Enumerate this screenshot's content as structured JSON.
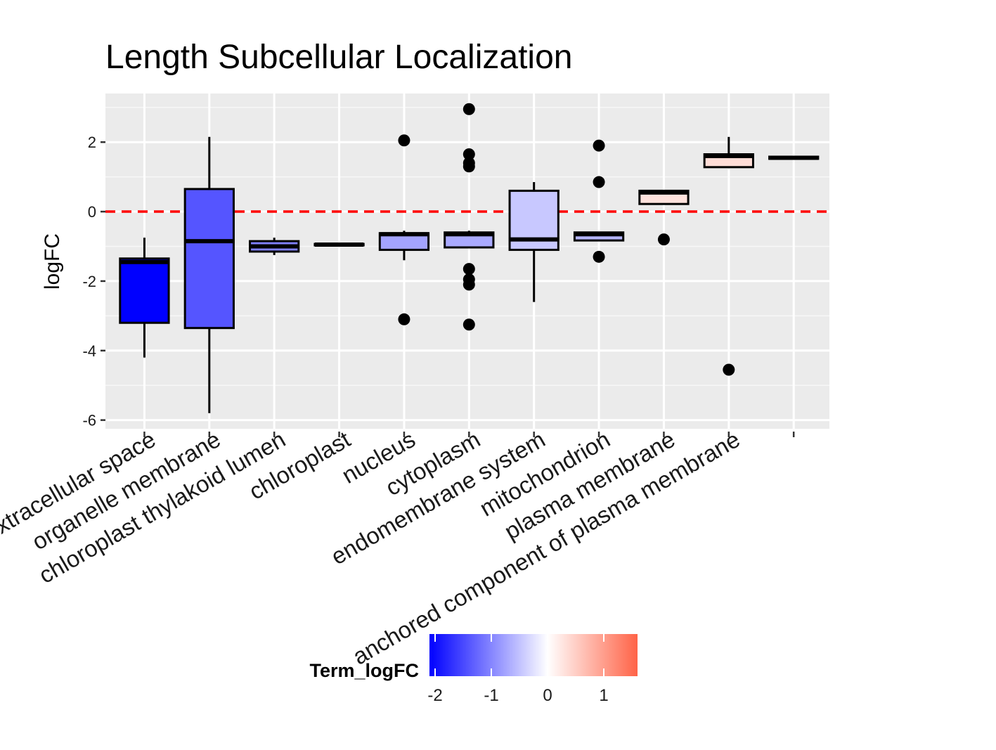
{
  "chart_data": {
    "type": "boxplot",
    "title": "Length Subcellular Localization",
    "xlabel": "",
    "ylabel": "logFC",
    "ylim": [
      -6.25,
      3.4
    ],
    "yticks": [
      -6,
      -4,
      -2,
      0,
      2
    ],
    "grid": true,
    "reference_line": {
      "y": 0,
      "color": "#ff0000",
      "style": "dashed"
    },
    "categories": [
      "extracellular space",
      "organelle membrane",
      "chloroplast thylakoid lumen",
      "chloroplast",
      "nucleus",
      "cytoplasm",
      "endomembrane system",
      "mitochondrion",
      "plasma membrane",
      "anchored component of plasma membrane"
    ],
    "boxes": [
      {
        "category": "extracellular space",
        "whisker_low": -4.2,
        "q1": -3.2,
        "median": -1.45,
        "q3": -1.35,
        "whisker_high": -0.75,
        "outliers": [],
        "term_logFC": -2.1
      },
      {
        "category": "organelle membrane",
        "whisker_low": -5.8,
        "q1": -3.35,
        "median": -0.85,
        "q3": 0.65,
        "whisker_high": 2.15,
        "outliers": [],
        "term_logFC": -1.4
      },
      {
        "category": "chloroplast thylakoid lumen",
        "whisker_low": -1.25,
        "q1": -1.15,
        "median": -1.0,
        "q3": -0.85,
        "whisker_high": -0.75,
        "outliers": [],
        "term_logFC": -1.05
      },
      {
        "category": "chloroplast",
        "whisker_low": -0.98,
        "q1": -0.97,
        "median": -0.95,
        "q3": -0.93,
        "whisker_high": -0.92,
        "outliers": [],
        "term_logFC": -0.95
      },
      {
        "category": "nucleus",
        "whisker_low": -1.4,
        "q1": -1.1,
        "median": -0.65,
        "q3": -0.62,
        "whisker_high": -0.55,
        "outliers": [
          2.05,
          -3.1
        ],
        "term_logFC": -0.75
      },
      {
        "category": "cytoplasm",
        "whisker_low": -1.05,
        "q1": -1.03,
        "median": -0.65,
        "q3": -0.6,
        "whisker_high": -0.55,
        "outliers": [
          2.95,
          1.65,
          1.4,
          1.3,
          -1.65,
          -1.95,
          -2.1,
          -3.25
        ],
        "term_logFC": -0.7
      },
      {
        "category": "endomembrane system",
        "whisker_low": -2.6,
        "q1": -1.1,
        "median": -0.8,
        "q3": 0.6,
        "whisker_high": 0.85,
        "outliers": [],
        "term_logFC": -0.45
      },
      {
        "category": "mitochondrion",
        "whisker_low": -0.85,
        "q1": -0.83,
        "median": -0.65,
        "q3": -0.6,
        "whisker_high": -0.58,
        "outliers": [
          1.9,
          0.85,
          -1.3
        ],
        "term_logFC": -0.6
      },
      {
        "category": "plasma membrane",
        "whisker_low": 0.2,
        "q1": 0.22,
        "median": 0.55,
        "q3": 0.6,
        "whisker_high": 0.62,
        "outliers": [
          -0.8
        ],
        "term_logFC": 0.3
      },
      {
        "category": "anchored component of plasma membrane",
        "whisker_low": 1.25,
        "q1": 1.28,
        "median": 1.6,
        "q3": 1.65,
        "whisker_high": 2.15,
        "outliers": [
          -4.55
        ],
        "term_logFC": 0.35
      }
    ],
    "extra_box": {
      "whisker_low": 1.52,
      "q1": 1.52,
      "median": 1.55,
      "q3": 1.58,
      "whisker_high": 1.58,
      "outliers": [],
      "term_logFC": 0.3
    },
    "legend": {
      "title": "Term_logFC",
      "placement": "bottom",
      "type": "gradient",
      "colors": {
        "low": "#0000ff",
        "mid": "#ffffff",
        "high": "#ff6347"
      },
      "range": [
        -2.1,
        1.6
      ],
      "ticks": [
        -2,
        -1,
        0,
        1
      ]
    }
  }
}
